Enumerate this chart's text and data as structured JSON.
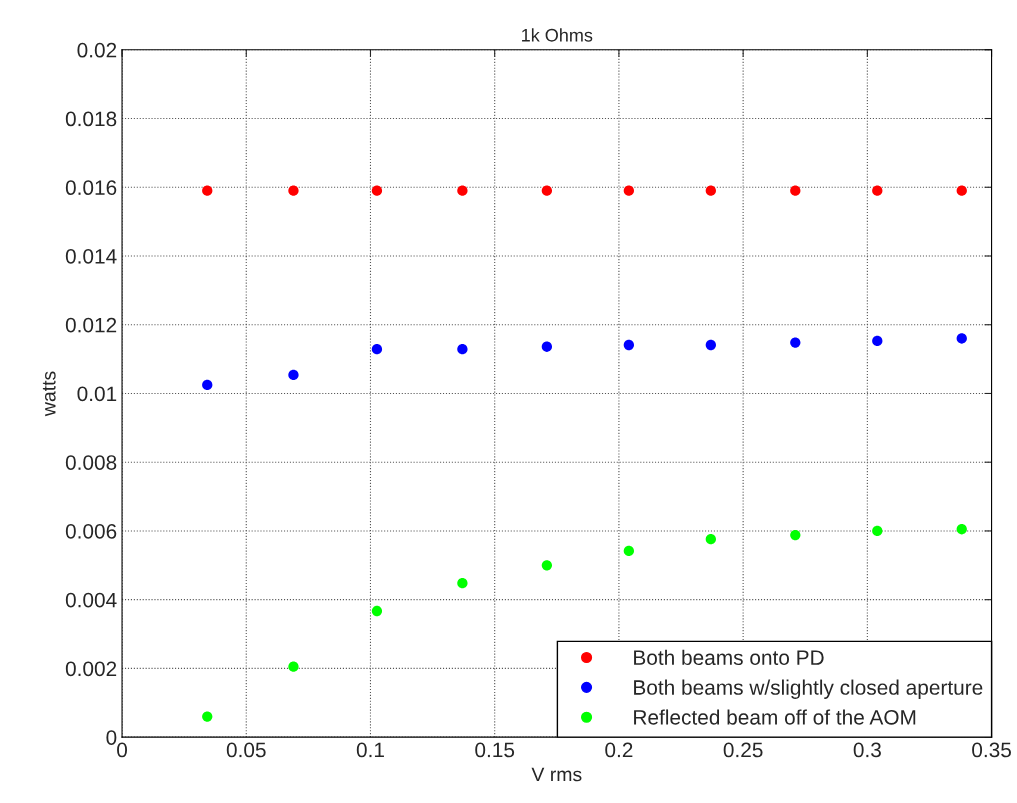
{
  "chart_data": {
    "type": "scatter",
    "title": "1k Ohms",
    "xlabel": "V rms",
    "ylabel": "watts",
    "x": [
      0.0343,
      0.069,
      0.1026,
      0.137,
      0.171,
      0.204,
      0.237,
      0.271,
      0.304,
      0.338
    ],
    "series": [
      {
        "name": "Both beams onto PD",
        "color": "#ff0000",
        "values": [
          0.0159,
          0.0159,
          0.0159,
          0.0159,
          0.0159,
          0.0159,
          0.0159,
          0.0159,
          0.0159,
          0.0159
        ]
      },
      {
        "name": "Both beams w/slightly closed aperture",
        "color": "#0000ff",
        "values": [
          0.01025,
          0.01054,
          0.01129,
          0.01129,
          0.01136,
          0.01141,
          0.01141,
          0.01148,
          0.01153,
          0.0116
        ]
      },
      {
        "name": "Reflected beam off of the AOM",
        "color": "#00ff00",
        "values": [
          0.0006,
          0.00205,
          0.00367,
          0.00448,
          0.005,
          0.00542,
          0.00576,
          0.00588,
          0.006,
          0.00605
        ]
      }
    ],
    "xlim": [
      0,
      0.35
    ],
    "xticks": [
      0,
      0.05,
      0.1,
      0.15,
      0.2,
      0.25,
      0.3,
      0.35
    ],
    "ylim": [
      0,
      0.02
    ],
    "yticks": [
      0,
      0.002,
      0.004,
      0.006,
      0.008,
      0.01,
      0.012,
      0.014,
      0.016,
      0.018,
      0.02
    ],
    "grid": true,
    "legend": "bottom right",
    "marker": "circle"
  }
}
